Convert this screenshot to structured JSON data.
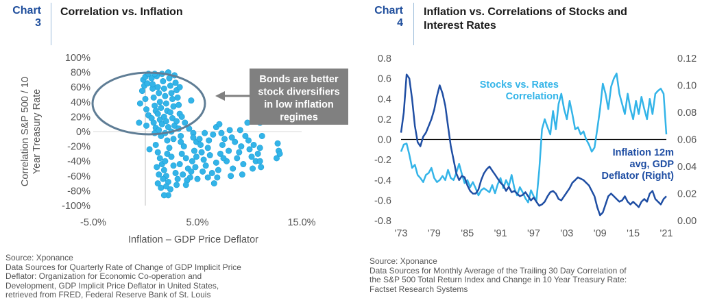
{
  "colors": {
    "accent": "#1f4e9c",
    "light_blue": "#33b4e8",
    "dark_blue": "#1f4ea3",
    "callout_bg": "#808080",
    "ellipse": "#5f7d95",
    "axis_text": "#555555"
  },
  "chart3": {
    "number_label": "Chart",
    "number_value": "3",
    "title": "Correlation vs. Inflation",
    "source_lines": [
      "Source: Xponance",
      "Data Sources for Quarterly Rate of Change of GDP Implicit Price",
      "Deflator: Organization for Economic Co-operation and",
      "Development, GDP Implicit Price Deflator in United States,",
      "retrieved from FRED, Federal Reserve Bank of St. Louis"
    ],
    "callout_lines": [
      "Bonds are better",
      "stock diversifiers",
      "in low inflation",
      "regimes"
    ]
  },
  "chart4": {
    "number_label": "Chart",
    "number_value": "4",
    "title_lines": [
      "Inflation vs. Correlations of Stocks and",
      "Interest Rates"
    ],
    "source_lines": [
      "Source: Xponance",
      "Data Sources for Monthly Average of the Trailing 30 Day Correlation of",
      "the S&P 500 Total Return Index and Change in 10 Year Treasury Rate:",
      "Factset Research Systems"
    ]
  },
  "chart_data": [
    {
      "type": "scatter",
      "title": "Correlation vs. Inflation",
      "xlabel": "Inflation – GDP Price Deflator",
      "ylabel": "Correlation S&P 500 / 10 Year Treasury Rate",
      "xlim": [
        -5,
        15
      ],
      "ylim": [
        -100,
        100
      ],
      "x_ticks": [
        "-5.0%",
        "5.0%",
        "15.0%"
      ],
      "x_tick_values": [
        -5,
        5,
        15
      ],
      "y_ticks": [
        "100%",
        "80%",
        "60%",
        "40%",
        "20%",
        "0%",
        "-20%",
        "-40%",
        "-60%",
        "-80%",
        "-100%"
      ],
      "y_tick_values": [
        100,
        80,
        60,
        40,
        20,
        0,
        -20,
        -40,
        -60,
        -80,
        -100
      ],
      "points": [
        [
          -0.5,
          38
        ],
        [
          -0.6,
          12
        ],
        [
          -0.2,
          70
        ],
        [
          -0.3,
          55
        ],
        [
          -0.1,
          62
        ],
        [
          0.0,
          44
        ],
        [
          0.1,
          30
        ],
        [
          0.2,
          65
        ],
        [
          0.3,
          22
        ],
        [
          0.1,
          8
        ],
        [
          0.4,
          -24
        ],
        [
          0.0,
          74
        ],
        [
          0.6,
          72
        ],
        [
          0.7,
          58
        ],
        [
          0.8,
          46
        ],
        [
          0.9,
          35
        ],
        [
          1.0,
          28
        ],
        [
          0.6,
          18
        ],
        [
          0.8,
          12
        ],
        [
          1.0,
          5
        ],
        [
          0.9,
          -2
        ],
        [
          0.7,
          64
        ],
        [
          1.1,
          75
        ],
        [
          1.2,
          60
        ],
        [
          1.3,
          52
        ],
        [
          1.4,
          40
        ],
        [
          1.5,
          32
        ],
        [
          1.2,
          24
        ],
        [
          1.4,
          16
        ],
        [
          1.6,
          10
        ],
        [
          1.3,
          2
        ],
        [
          1.5,
          -6
        ],
        [
          1.7,
          68
        ],
        [
          1.8,
          58
        ],
        [
          1.9,
          48
        ],
        [
          2.0,
          38
        ],
        [
          2.1,
          28
        ],
        [
          1.8,
          20
        ],
        [
          2.0,
          14
        ],
        [
          2.2,
          6
        ],
        [
          1.9,
          -2
        ],
        [
          2.1,
          -12
        ],
        [
          2.3,
          72
        ],
        [
          2.4,
          62
        ],
        [
          2.5,
          52
        ],
        [
          2.6,
          44
        ],
        [
          2.7,
          34
        ],
        [
          2.4,
          26
        ],
        [
          2.6,
          18
        ],
        [
          2.8,
          8
        ],
        [
          2.5,
          0
        ],
        [
          2.7,
          -10
        ],
        [
          2.9,
          66
        ],
        [
          3.0,
          56
        ],
        [
          3.1,
          46
        ],
        [
          3.2,
          36
        ],
        [
          3.3,
          24
        ],
        [
          3.0,
          14
        ],
        [
          3.2,
          4
        ],
        [
          3.4,
          -6
        ],
        [
          1.0,
          -18
        ],
        [
          1.2,
          -28
        ],
        [
          1.4,
          -36
        ],
        [
          1.6,
          -44
        ],
        [
          1.8,
          -52
        ],
        [
          2.0,
          -60
        ],
        [
          2.2,
          -68
        ],
        [
          1.5,
          -76
        ],
        [
          2.4,
          -78
        ],
        [
          1.1,
          -48
        ],
        [
          1.3,
          -58
        ],
        [
          1.7,
          -64
        ],
        [
          1.9,
          -40
        ],
        [
          2.1,
          -30
        ],
        [
          2.3,
          -22
        ],
        [
          2.5,
          -34
        ],
        [
          2.7,
          -46
        ],
        [
          2.9,
          -56
        ],
        [
          3.1,
          -64
        ],
        [
          3.3,
          -44
        ],
        [
          3.5,
          -30
        ],
        [
          3.7,
          -20
        ],
        [
          3.9,
          -36
        ],
        [
          4.1,
          -50
        ],
        [
          4.3,
          -62
        ],
        [
          4.5,
          -40
        ],
        [
          4.7,
          -26
        ],
        [
          4.9,
          -14
        ],
        [
          3.6,
          -58
        ],
        [
          4.0,
          -66
        ],
        [
          4.4,
          -54
        ],
        [
          4.8,
          -48
        ],
        [
          5.0,
          -64
        ],
        [
          3.8,
          12
        ],
        [
          4.2,
          4
        ],
        [
          4.6,
          -2
        ],
        [
          5.2,
          -10
        ],
        [
          5.4,
          -28
        ],
        [
          5.6,
          -38
        ],
        [
          5.8,
          -46
        ],
        [
          6.0,
          -22
        ],
        [
          6.2,
          -32
        ],
        [
          6.4,
          -56
        ],
        [
          6.6,
          -70
        ],
        [
          6.8,
          -42
        ],
        [
          7.0,
          -52
        ],
        [
          7.2,
          -30
        ],
        [
          7.4,
          -18
        ],
        [
          7.6,
          -10
        ],
        [
          6.5,
          -4
        ],
        [
          6.8,
          6
        ],
        [
          7.8,
          -40
        ],
        [
          8.0,
          -26
        ],
        [
          8.2,
          -60
        ],
        [
          8.4,
          -50
        ],
        [
          8.6,
          -14
        ],
        [
          8.8,
          -36
        ],
        [
          9.0,
          -28
        ],
        [
          9.2,
          -20
        ],
        [
          9.4,
          -44
        ],
        [
          9.6,
          -6
        ],
        [
          9.8,
          12
        ],
        [
          10.0,
          -24
        ],
        [
          10.2,
          -34
        ],
        [
          10.4,
          -18
        ],
        [
          10.6,
          -40
        ],
        [
          7.1,
          10
        ],
        [
          8.1,
          2
        ],
        [
          9.1,
          2
        ],
        [
          11.0,
          12
        ],
        [
          11.1,
          -48
        ],
        [
          11.0,
          -40
        ],
        [
          11.2,
          -6
        ],
        [
          11.0,
          -22
        ],
        [
          10.8,
          -30
        ],
        [
          12.7,
          -16
        ],
        [
          12.8,
          -26
        ],
        [
          12.6,
          -36
        ],
        [
          12.9,
          -30
        ],
        [
          6.0,
          -62
        ],
        [
          5.3,
          -18
        ],
        [
          4.6,
          -8
        ],
        [
          3.5,
          20
        ],
        [
          3.3,
          60
        ],
        [
          2.8,
          76
        ],
        [
          2.2,
          80
        ],
        [
          1.6,
          78
        ],
        [
          0.9,
          78
        ],
        [
          0.3,
          78
        ],
        [
          4.4,
          42
        ],
        [
          3.9,
          -72
        ],
        [
          3.0,
          -72
        ],
        [
          2.0,
          -74
        ],
        [
          1.2,
          -70
        ],
        [
          5.5,
          -54
        ],
        [
          6.9,
          -62
        ],
        [
          7.5,
          -36
        ],
        [
          8.3,
          -8
        ],
        [
          9.3,
          -58
        ],
        [
          10.3,
          -50
        ],
        [
          9.9,
          -12
        ],
        [
          7.3,
          -2
        ],
        [
          6.1,
          -12
        ],
        [
          5.7,
          -2
        ],
        [
          4.9,
          -34
        ],
        [
          3.4,
          -14
        ],
        [
          2.2,
          -86
        ],
        [
          1.8,
          -86
        ]
      ]
    },
    {
      "type": "line",
      "title": "Inflation vs. Correlations of Stocks and Interest Rates",
      "xlim": [
        1973,
        2021
      ],
      "x_ticks": [
        "'73",
        "'79",
        "'85",
        "'91",
        "'97",
        "'03",
        "'09",
        "'15",
        "'21"
      ],
      "x_tick_values": [
        1973,
        1979,
        1985,
        1991,
        1997,
        2003,
        2009,
        2015,
        2021
      ],
      "ylim_left": [
        -0.8,
        0.8
      ],
      "y_ticks_left": [
        "0.8",
        "0.6",
        "0.4",
        "0.2",
        "0.0",
        "-0.2",
        "-0.4",
        "-0.6",
        "-0.8"
      ],
      "y_tick_values_left": [
        0.8,
        0.6,
        0.4,
        0.2,
        0.0,
        -0.2,
        -0.4,
        -0.6,
        -0.8
      ],
      "ylim_right": [
        0.0,
        0.12
      ],
      "y_ticks_right": [
        "0.12",
        "0.10",
        "0.08",
        "0.06",
        "0.04",
        "0.02",
        "0.00"
      ],
      "y_tick_values_right": [
        0.12,
        0.1,
        0.08,
        0.06,
        0.04,
        0.02,
        0.0
      ],
      "series": [
        {
          "name": "Stocks vs. Rates Correlation",
          "axis": "left",
          "color": "#33b4e8",
          "x": [
            1973.0,
            1973.5,
            1974.0,
            1974.5,
            1975.0,
            1975.5,
            1976.0,
            1976.5,
            1977.0,
            1977.5,
            1978.0,
            1978.5,
            1979.0,
            1979.5,
            1980.0,
            1980.5,
            1981.0,
            1981.5,
            1982.0,
            1982.5,
            1983.0,
            1983.5,
            1984.0,
            1984.5,
            1985.0,
            1985.5,
            1986.0,
            1986.5,
            1987.0,
            1987.5,
            1988.0,
            1988.5,
            1989.0,
            1989.5,
            1990.0,
            1990.5,
            1991.0,
            1991.5,
            1992.0,
            1992.5,
            1993.0,
            1993.5,
            1994.0,
            1994.5,
            1995.0,
            1995.5,
            1996.0,
            1996.5,
            1997.0,
            1997.5,
            1998.0,
            1998.5,
            1999.0,
            1999.5,
            2000.0,
            2000.5,
            2001.0,
            2001.5,
            2002.0,
            2002.5,
            2003.0,
            2003.5,
            2004.0,
            2004.5,
            2005.0,
            2005.5,
            2006.0,
            2006.5,
            2007.0,
            2007.5,
            2008.0,
            2008.5,
            2009.0,
            2009.5,
            2010.0,
            2010.5,
            2011.0,
            2011.5,
            2012.0,
            2012.5,
            2013.0,
            2013.5,
            2014.0,
            2014.5,
            2015.0,
            2015.5,
            2016.0,
            2016.5,
            2017.0,
            2017.5,
            2018.0,
            2018.5,
            2019.0,
            2019.5,
            2020.0,
            2020.5,
            2021.0
          ],
          "y": [
            -0.12,
            -0.05,
            -0.04,
            -0.15,
            -0.28,
            -0.25,
            -0.35,
            -0.38,
            -0.42,
            -0.35,
            -0.33,
            -0.28,
            -0.38,
            -0.42,
            -0.4,
            -0.36,
            -0.4,
            -0.3,
            -0.38,
            -0.4,
            -0.33,
            -0.24,
            -0.34,
            -0.43,
            -0.4,
            -0.47,
            -0.42,
            -0.48,
            -0.55,
            -0.5,
            -0.48,
            -0.5,
            -0.52,
            -0.45,
            -0.53,
            -0.44,
            -0.38,
            -0.48,
            -0.4,
            -0.46,
            -0.35,
            -0.48,
            -0.55,
            -0.47,
            -0.52,
            -0.58,
            -0.62,
            -0.5,
            -0.56,
            -0.6,
            -0.3,
            0.1,
            0.2,
            0.12,
            0.05,
            0.28,
            0.1,
            0.35,
            0.45,
            0.3,
            0.2,
            0.38,
            0.25,
            0.1,
            0.12,
            0.05,
            0.08,
            0.0,
            -0.05,
            -0.12,
            -0.08,
            0.1,
            0.3,
            0.55,
            0.45,
            0.3,
            0.52,
            0.6,
            0.65,
            0.45,
            0.35,
            0.25,
            0.45,
            0.3,
            0.2,
            0.38,
            0.25,
            0.42,
            0.3,
            0.2,
            0.4,
            0.25,
            0.45,
            0.48,
            0.5,
            0.45,
            0.05
          ]
        },
        {
          "name": "Inflation 12m avg, GDP Deflator (Right)",
          "axis": "right",
          "color": "#1f4ea3",
          "x": [
            1973.0,
            1973.5,
            1974.0,
            1974.5,
            1975.0,
            1975.5,
            1976.0,
            1976.5,
            1977.0,
            1977.5,
            1978.0,
            1978.5,
            1979.0,
            1979.5,
            1980.0,
            1980.5,
            1981.0,
            1981.5,
            1982.0,
            1982.5,
            1983.0,
            1983.5,
            1984.0,
            1984.5,
            1985.0,
            1985.5,
            1986.0,
            1986.5,
            1987.0,
            1987.5,
            1988.0,
            1988.5,
            1989.0,
            1989.5,
            1990.0,
            1990.5,
            1991.0,
            1991.5,
            1992.0,
            1992.5,
            1993.0,
            1993.5,
            1994.0,
            1994.5,
            1995.0,
            1995.5,
            1996.0,
            1996.5,
            1997.0,
            1997.5,
            1998.0,
            1998.5,
            1999.0,
            1999.5,
            2000.0,
            2000.5,
            2001.0,
            2001.5,
            2002.0,
            2002.5,
            2003.0,
            2003.5,
            2004.0,
            2004.5,
            2005.0,
            2005.5,
            2006.0,
            2006.5,
            2007.0,
            2007.5,
            2008.0,
            2008.5,
            2009.0,
            2009.5,
            2010.0,
            2010.5,
            2011.0,
            2011.5,
            2012.0,
            2012.5,
            2013.0,
            2013.5,
            2014.0,
            2014.5,
            2015.0,
            2015.5,
            2016.0,
            2016.5,
            2017.0,
            2017.5,
            2018.0,
            2018.5,
            2019.0,
            2019.5,
            2020.0,
            2020.5,
            2021.0
          ],
          "y": [
            0.065,
            0.08,
            0.108,
            0.105,
            0.09,
            0.07,
            0.058,
            0.055,
            0.062,
            0.065,
            0.07,
            0.075,
            0.082,
            0.092,
            0.1,
            0.094,
            0.085,
            0.07,
            0.055,
            0.045,
            0.035,
            0.03,
            0.033,
            0.032,
            0.026,
            0.022,
            0.02,
            0.02,
            0.023,
            0.03,
            0.035,
            0.038,
            0.04,
            0.037,
            0.034,
            0.031,
            0.028,
            0.026,
            0.022,
            0.025,
            0.021,
            0.022,
            0.02,
            0.018,
            0.019,
            0.021,
            0.018,
            0.015,
            0.017,
            0.014,
            0.011,
            0.012,
            0.014,
            0.018,
            0.021,
            0.022,
            0.02,
            0.016,
            0.015,
            0.018,
            0.021,
            0.024,
            0.028,
            0.03,
            0.032,
            0.031,
            0.03,
            0.028,
            0.026,
            0.022,
            0.018,
            0.01,
            0.004,
            0.006,
            0.012,
            0.018,
            0.02,
            0.018,
            0.016,
            0.014,
            0.015,
            0.018,
            0.014,
            0.012,
            0.014,
            0.012,
            0.01,
            0.014,
            0.016,
            0.014,
            0.02,
            0.022,
            0.016,
            0.014,
            0.012,
            0.016,
            0.018
          ]
        }
      ],
      "annotations": [
        {
          "lines": [
            "Stocks vs. Rates",
            "Correlation"
          ],
          "color": "#33b4e8"
        },
        {
          "lines": [
            "Inflation 12m",
            "avg, GDP",
            "Deflator (Right)"
          ],
          "color": "#1f4ea3"
        }
      ]
    }
  ]
}
